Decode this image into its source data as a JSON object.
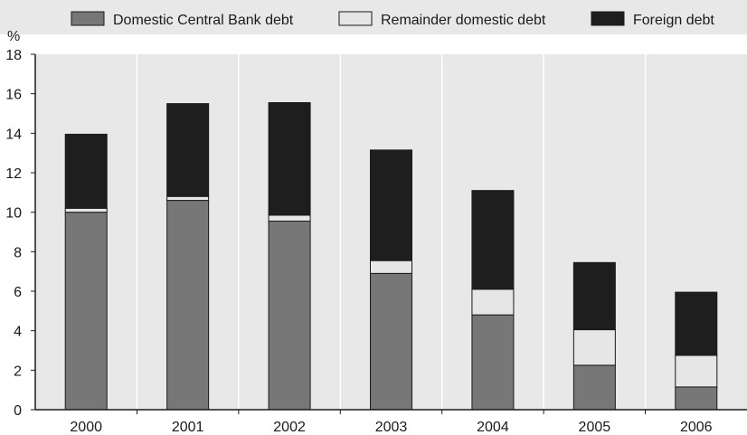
{
  "chart_data": {
    "type": "bar",
    "stacked": true,
    "y_unit": "%",
    "categories": [
      "2000",
      "2001",
      "2002",
      "2003",
      "2004",
      "2005",
      "2006"
    ],
    "series": [
      {
        "name": "Domestic Central Bank debt",
        "color": "#777777",
        "values": [
          10.0,
          10.6,
          9.55,
          6.9,
          4.8,
          2.25,
          1.15
        ]
      },
      {
        "name": "Remainder domestic debt",
        "color": "#e6e6e6",
        "values": [
          0.2,
          0.2,
          0.3,
          0.65,
          1.3,
          1.8,
          1.6
        ]
      },
      {
        "name": "Foreign debt",
        "color": "#1e1e1e",
        "values": [
          3.75,
          4.7,
          5.7,
          5.6,
          5.0,
          3.4,
          3.2
        ]
      }
    ],
    "ylim": [
      0,
      18
    ],
    "y_ticks": [
      0,
      2,
      4,
      6,
      8,
      10,
      12,
      14,
      16,
      18
    ],
    "grid": "vertical",
    "legend_position": "top"
  }
}
